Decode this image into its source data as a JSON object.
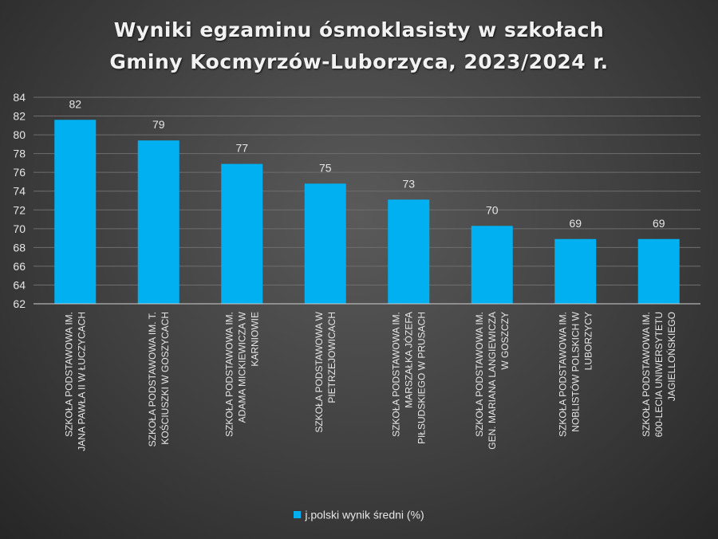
{
  "title_lines": [
    "Wyniki egzaminu ósmoklasisty w  szkołach",
    "Gminy Kocmyrzów-Luborzyca, 2023/2024 r."
  ],
  "chart_data": {
    "type": "bar",
    "title": "Wyniki egzaminu ósmoklasisty w szkołach Gminy Kocmyrzów-Luborzyca, 2023/2024 r.",
    "categories": [
      [
        "SZKOŁA PODSTAWOWA IM.",
        "JANA PAWŁA II W ŁUCZYCACH"
      ],
      [
        "SZKOŁA PODSTAWOWA IM. T.",
        "KOŚCIUSZKI W GOSZYCACH"
      ],
      [
        "SZKOŁA PODSTAWOWA IM.",
        "ADAMA MICKIEWICZA W",
        "KARNIOWIE"
      ],
      [
        "SZKOŁA PODSTAWOWA W",
        "PIETRZEJOWICACH"
      ],
      [
        "SZKOŁA PODSTAWOWA IM.",
        "MARSZAŁKA JÓZEFA",
        "PIŁSUDSKIEGO W PRUSACH"
      ],
      [
        "SZKOŁA PODSTAWOWA IM.",
        "GEN. MARIANA LANGIEWICZA",
        "W GOSZCZY"
      ],
      [
        "SZKOŁA PODSTAWOWA IM.",
        "NOBLISTÓW POLSKICH W",
        "LUBORZYCY"
      ],
      [
        "SZKOŁA PODSTAWOWA IM.",
        "600-LECIA UNIWERSYTETU",
        "JAGIELLOŃSKIEGO"
      ]
    ],
    "series": [
      {
        "name": "j.polski wynik średni (%)",
        "values": [
          81.6,
          79.4,
          76.9,
          74.8,
          73.1,
          70.3,
          68.9,
          68.9
        ],
        "labels": [
          "82",
          "79",
          "77",
          "75",
          "73",
          "70",
          "69",
          "69"
        ]
      }
    ],
    "ylim": [
      62,
      84
    ],
    "yticks": [
      62,
      64,
      66,
      68,
      70,
      72,
      74,
      76,
      78,
      80,
      82,
      84
    ],
    "grid": true,
    "legend": "bottom",
    "colors": {
      "bar": "#00b0f0",
      "grid": "#6e6e6e",
      "axis": "#cfcfcf",
      "text": "#e6e6e6"
    }
  },
  "legend_label": "j.polski wynik średni (%)"
}
